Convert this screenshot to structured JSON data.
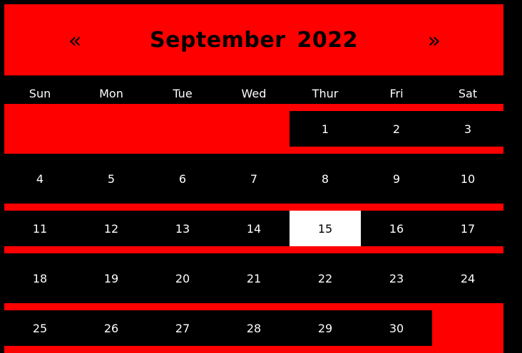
{
  "header": {
    "prev_label": "«",
    "next_label": "»",
    "month": "September",
    "year": "2022"
  },
  "weekdays": [
    "Sun",
    "Mon",
    "Tue",
    "Wed",
    "Thur",
    "Fri",
    "Sat"
  ],
  "today": "15",
  "colors": {
    "accent": "#ff0000",
    "background": "#000000",
    "today_bg": "#ffffff",
    "text": "#ffffff"
  },
  "weeks": [
    [
      "",
      "",
      "",
      "",
      "1",
      "2",
      "3"
    ],
    [
      "4",
      "5",
      "6",
      "7",
      "8",
      "9",
      "10"
    ],
    [
      "11",
      "12",
      "13",
      "14",
      "15",
      "16",
      "17"
    ],
    [
      "18",
      "19",
      "20",
      "21",
      "22",
      "23",
      "24"
    ],
    [
      "25",
      "26",
      "27",
      "28",
      "29",
      "30",
      ""
    ]
  ]
}
